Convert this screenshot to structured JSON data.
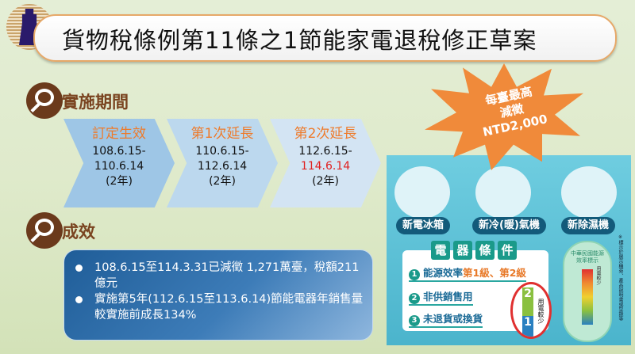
{
  "header": {
    "title": "貨物稅條例第11條之1節能家電退稅修正草案",
    "logo": "agency-emblem"
  },
  "period": {
    "title": "實施期間",
    "stages": [
      {
        "label": "訂定生效",
        "start": "108.6.15-",
        "end": "110.6.14",
        "duration": "(2年)"
      },
      {
        "label": "第1次延長",
        "start": "110.6.15-",
        "end": "112.6.14",
        "duration": "(2年)"
      },
      {
        "label": "第2次延長",
        "start": "112.6.15-",
        "end": "114.6.14",
        "duration": "(2年)"
      }
    ]
  },
  "results": {
    "title": "成效",
    "items": [
      "108.6.15至114.3.31已減徵 1,271萬臺，稅額211億元",
      "實施第5年(112.6.15至113.6.14)節能電器年銷售量較實施前成長134%"
    ]
  },
  "burst": {
    "line1": "每臺最高",
    "line2": "減徵",
    "line3": "NTD2,000"
  },
  "panel": {
    "appliances": [
      "新電冰箱",
      "新冷(暖)氣機",
      "新除濕機"
    ],
    "conditions_title": [
      "電",
      "器",
      "條",
      "件"
    ],
    "conditions": [
      {
        "num": "1",
        "text": "能源效率",
        "highlight": "第1級、第2級"
      },
      {
        "num": "2",
        "text": "非供銷售用",
        "highlight": ""
      },
      {
        "num": "3",
        "text": "未退貨或換貨",
        "highlight": ""
      }
    ],
    "label_title": "中華民國能源效率標示",
    "label_note": "用電較少",
    "side_note": "※標示於展示機旁、產品說明書或型錄等"
  },
  "colors": {
    "accent_orange": "#ee7a2a",
    "red_date": "#e02020",
    "brown": "#7a4420",
    "panel": "#5bc0d8"
  }
}
